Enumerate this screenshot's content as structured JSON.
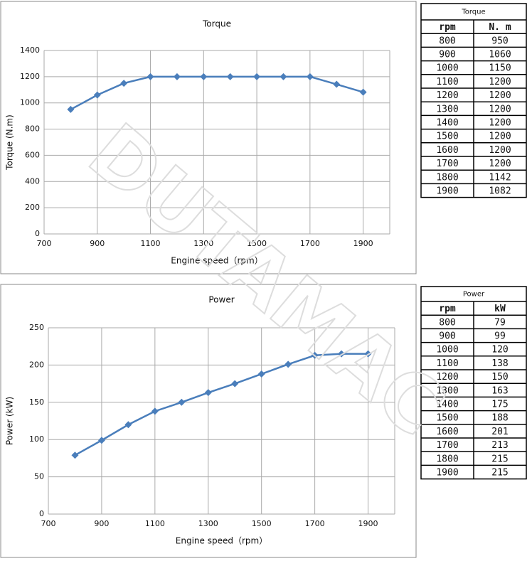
{
  "chart_data": [
    {
      "type": "line",
      "title": "Torque",
      "x_label": "Engine speed（rpm）",
      "y_label": "Torque (N.m)",
      "x": [
        800,
        900,
        1000,
        1100,
        1200,
        1300,
        1400,
        1500,
        1600,
        1700,
        1800,
        1900
      ],
      "series": [
        {
          "name": "Torque",
          "color": "#4a7ebb",
          "values": [
            950,
            1060,
            1150,
            1200,
            1200,
            1200,
            1200,
            1200,
            1200,
            1200,
            1142,
            1082
          ]
        }
      ],
      "xlim": [
        700,
        2000
      ],
      "xticks": [
        700,
        900,
        1100,
        1300,
        1500,
        1700,
        1900
      ],
      "ylim": [
        0,
        1400
      ],
      "yticks": [
        0,
        200,
        400,
        600,
        800,
        1000,
        1200,
        1400
      ],
      "grid": true
    },
    {
      "type": "line",
      "title": "Power",
      "x_label": "Engine speed（rpm）",
      "y_label": "Power (kW)",
      "x": [
        800,
        900,
        1000,
        1100,
        1200,
        1300,
        1400,
        1500,
        1600,
        1700,
        1800,
        1900
      ],
      "series": [
        {
          "name": "Power",
          "color": "#4a7ebb",
          "values": [
            79,
            99,
            120,
            138,
            150,
            163,
            175,
            188,
            201,
            213,
            215,
            215
          ]
        }
      ],
      "xlim": [
        700,
        2000
      ],
      "xticks": [
        700,
        900,
        1100,
        1300,
        1500,
        1700,
        1900
      ],
      "ylim": [
        0,
        250
      ],
      "yticks": [
        0,
        50,
        100,
        150,
        200,
        250
      ],
      "grid": true
    }
  ],
  "tables": [
    {
      "title": "Torque",
      "header": [
        "rpm",
        "N. m"
      ],
      "rows": [
        [
          800,
          950
        ],
        [
          900,
          1060
        ],
        [
          1000,
          1150
        ],
        [
          1100,
          1200
        ],
        [
          1200,
          1200
        ],
        [
          1300,
          1200
        ],
        [
          1400,
          1200
        ],
        [
          1500,
          1200
        ],
        [
          1600,
          1200
        ],
        [
          1700,
          1200
        ],
        [
          1800,
          1142
        ],
        [
          1900,
          1082
        ]
      ]
    },
    {
      "title": "Power",
      "header": [
        "rpm",
        "kW"
      ],
      "rows": [
        [
          800,
          79
        ],
        [
          900,
          99
        ],
        [
          1000,
          120
        ],
        [
          1100,
          138
        ],
        [
          1200,
          150
        ],
        [
          1300,
          163
        ],
        [
          1400,
          175
        ],
        [
          1500,
          188
        ],
        [
          1600,
          201
        ],
        [
          1700,
          213
        ],
        [
          1800,
          215
        ],
        [
          1900,
          215
        ]
      ]
    }
  ],
  "watermark": "DUTAMAC"
}
